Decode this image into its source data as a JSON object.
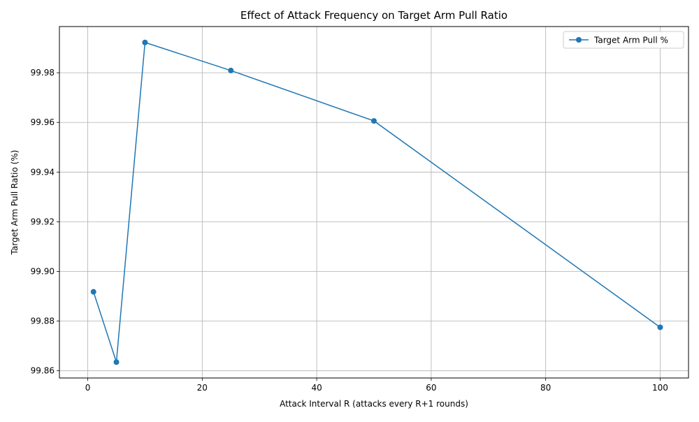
{
  "chart_data": {
    "type": "line",
    "title": "Effect of Attack Frequency on Target Arm Pull Ratio",
    "xlabel": "Attack Interval R (attacks every R+1 rounds)",
    "ylabel": "Target Arm Pull Ratio (%)",
    "xlim": [
      -4.95,
      104.95
    ],
    "ylim": [
      99.8571,
      99.9986
    ],
    "xticks": [
      0,
      20,
      40,
      60,
      80,
      100
    ],
    "xtick_labels": [
      "0",
      "20",
      "40",
      "60",
      "80",
      "100"
    ],
    "yticks": [
      99.86,
      99.88,
      99.9,
      99.92,
      99.94,
      99.96,
      99.98
    ],
    "ytick_labels": [
      "99.86",
      "99.88",
      "99.90",
      "99.92",
      "99.94",
      "99.96",
      "99.98"
    ],
    "grid": true,
    "legend_position": "top-right",
    "series": [
      {
        "name": "Target Arm Pull %",
        "color": "#1f77b4",
        "marker": "circle",
        "x": [
          1,
          5,
          10,
          25,
          50,
          100
        ],
        "y": [
          99.8918,
          99.8635,
          99.9922,
          99.9809,
          99.9606,
          99.8775
        ]
      }
    ]
  }
}
